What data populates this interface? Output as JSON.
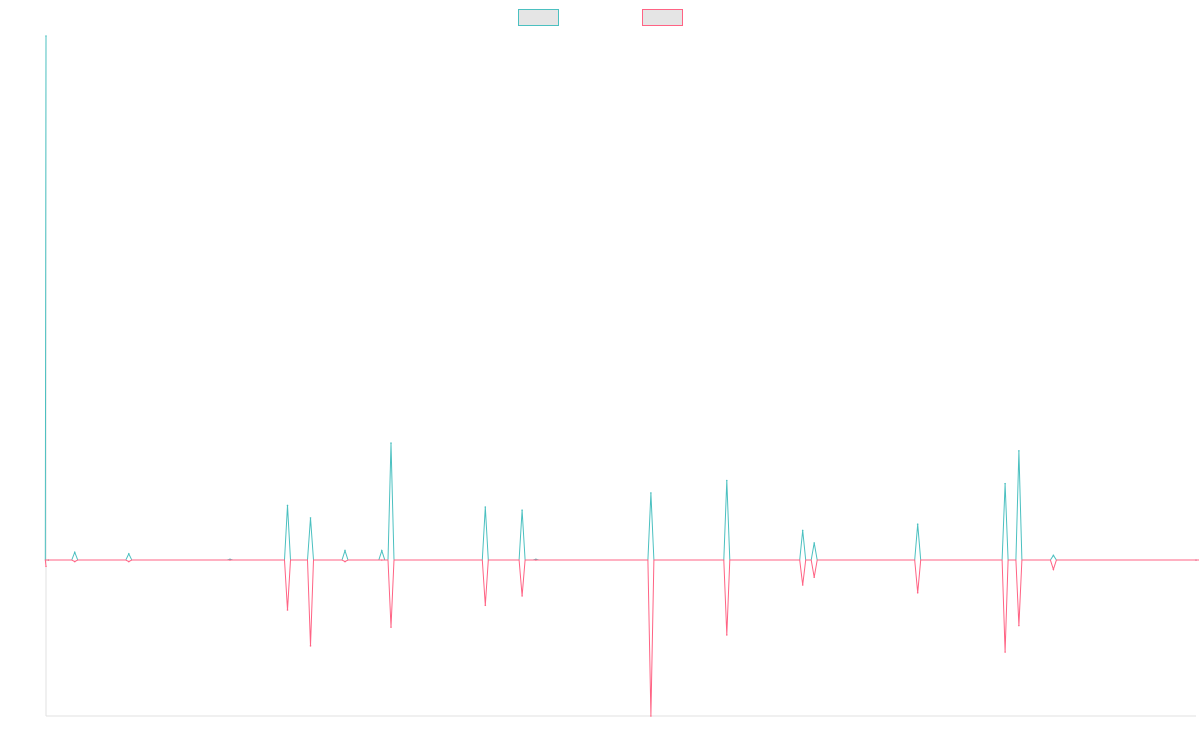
{
  "chart_data": {
    "type": "line",
    "title": "",
    "xlabel": "",
    "ylabel": "",
    "ylim": [
      -1.0,
      3.36
    ],
    "grid": false,
    "legend": "top-center",
    "series": [
      {
        "color": "#4bc0c0",
        "fill": "#e5e5e5",
        "points": [
          [
            0.0,
            3.36
          ],
          [
            0.1,
            0.0
          ],
          [
            1.25,
            0.05
          ],
          [
            3.6,
            0.04
          ],
          [
            8.0,
            0.005
          ],
          [
            10.5,
            0.35
          ],
          [
            11.5,
            0.27
          ],
          [
            13.0,
            0.06
          ],
          [
            14.6,
            0.06
          ],
          [
            15.0,
            0.75
          ],
          [
            19.1,
            0.34
          ],
          [
            20.7,
            0.32
          ],
          [
            21.3,
            0.005
          ],
          [
            26.3,
            0.43
          ],
          [
            29.6,
            0.51
          ],
          [
            32.9,
            0.19
          ],
          [
            33.4,
            0.11
          ],
          [
            37.9,
            0.23
          ],
          [
            41.7,
            0.49
          ],
          [
            42.3,
            0.7
          ],
          [
            43.8,
            0.03
          ],
          [
            50.0,
            0.0
          ]
        ]
      },
      {
        "color": "#ff6384",
        "fill": "#e5e5e5",
        "points": [
          [
            0.0,
            -0.04
          ],
          [
            0.1,
            0.0
          ],
          [
            1.25,
            -0.01
          ],
          [
            3.6,
            -0.01
          ],
          [
            8.0,
            0.0
          ],
          [
            10.5,
            -0.32
          ],
          [
            11.5,
            -0.55
          ],
          [
            13.0,
            -0.01
          ],
          [
            14.6,
            0.0
          ],
          [
            15.0,
            -0.43
          ],
          [
            19.1,
            -0.29
          ],
          [
            20.7,
            -0.23
          ],
          [
            21.3,
            0.0
          ],
          [
            26.3,
            -1.0
          ],
          [
            29.6,
            -0.48
          ],
          [
            32.9,
            -0.16
          ],
          [
            33.4,
            -0.11
          ],
          [
            37.9,
            -0.21
          ],
          [
            41.7,
            -0.59
          ],
          [
            42.3,
            -0.42
          ],
          [
            43.8,
            -0.06
          ],
          [
            50.0,
            0.0
          ]
        ]
      }
    ]
  }
}
